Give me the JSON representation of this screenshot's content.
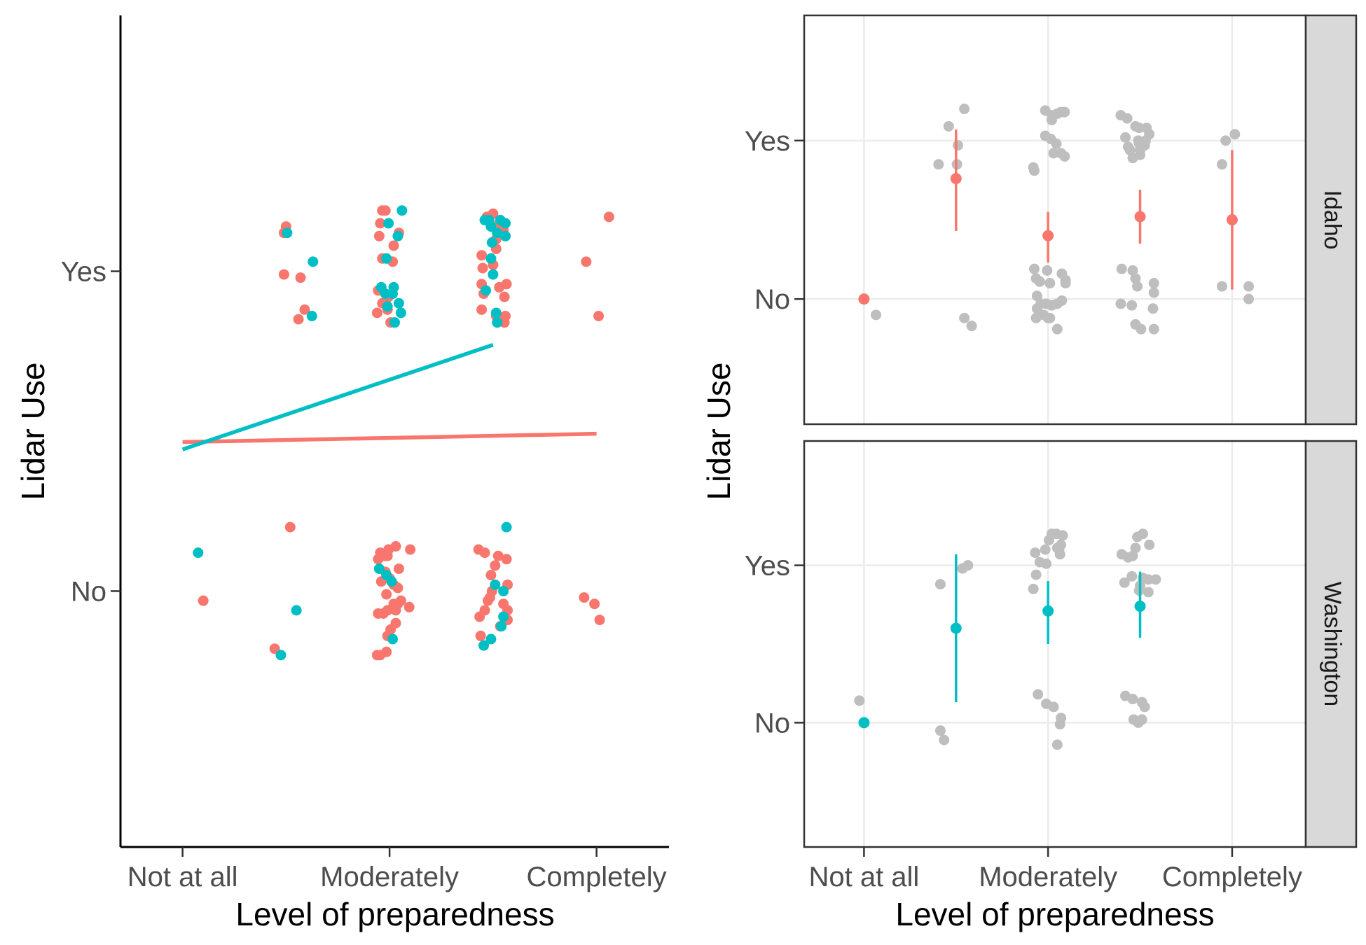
{
  "colors": {
    "idaho": "#F8766D",
    "washington": "#00BFC4",
    "raw_points": "#BEBEBE",
    "grid": "#EBEBEB",
    "strip_fill": "#D9D9D9",
    "panel_border": "#333333"
  },
  "chart_data": [
    {
      "type": "scatter",
      "panel": "left",
      "xlabel": "Level of preparedness",
      "ylabel": "Lidar Use",
      "x_ticks": [
        "Not at all",
        "Moderately",
        "Completely"
      ],
      "x_tick_values": [
        1,
        3,
        5
      ],
      "y_ticks": [
        "No",
        "Yes"
      ],
      "y_tick_values": [
        0,
        1
      ],
      "xlim": [
        0.4,
        5.7
      ],
      "ylim": [
        -0.8,
        1.8
      ],
      "grid": false,
      "series": [
        {
          "color_key": "idaho",
          "points": [
            [
              2.0,
              1.14
            ],
            [
              1.98,
              1.12
            ],
            [
              2.14,
              0.98
            ],
            [
              1.98,
              0.99
            ],
            [
              2.18,
              0.88
            ],
            [
              2.12,
              0.85
            ],
            [
              2.93,
              1.19
            ],
            [
              2.96,
              1.19
            ],
            [
              2.91,
              1.15
            ],
            [
              3.09,
              1.12
            ],
            [
              2.9,
              1.11
            ],
            [
              3.04,
              1.08
            ],
            [
              2.93,
              1.04
            ],
            [
              3.03,
              1.03
            ],
            [
              2.89,
              0.94
            ],
            [
              2.99,
              0.92
            ],
            [
              2.93,
              0.9
            ],
            [
              2.98,
              0.88
            ],
            [
              2.88,
              0.87
            ],
            [
              3.01,
              0.84
            ],
            [
              4.0,
              1.18
            ],
            [
              3.94,
              1.17
            ],
            [
              4.06,
              1.15
            ],
            [
              4.11,
              1.15
            ],
            [
              4.1,
              1.13
            ],
            [
              4.03,
              1.1
            ],
            [
              4.03,
              1.07
            ],
            [
              3.89,
              1.05
            ],
            [
              4.0,
              1.02
            ],
            [
              3.9,
              1.01
            ],
            [
              4.13,
              0.96
            ],
            [
              4.06,
              0.95
            ],
            [
              3.89,
              0.96
            ],
            [
              3.91,
              0.93
            ],
            [
              4.11,
              0.92
            ],
            [
              3.89,
              0.88
            ],
            [
              4.03,
              0.86
            ],
            [
              4.12,
              0.86
            ],
            [
              4.11,
              0.84
            ],
            [
              5.12,
              1.17
            ],
            [
              4.9,
              1.03
            ],
            [
              5.02,
              0.86
            ],
            [
              1.2,
              -0.03
            ],
            [
              2.04,
              0.2
            ],
            [
              1.89,
              -0.18
            ],
            [
              2.91,
              0.12
            ],
            [
              2.95,
              0.11
            ],
            [
              2.98,
              0.11
            ],
            [
              2.99,
              0.13
            ],
            [
              3.06,
              0.14
            ],
            [
              3.2,
              0.13
            ],
            [
              2.89,
              0.1
            ],
            [
              2.96,
              0.06
            ],
            [
              3.09,
              0.07
            ],
            [
              3.0,
              0.04
            ],
            [
              2.92,
              0.03
            ],
            [
              3.04,
              0.02
            ],
            [
              3.08,
              0.01
            ],
            [
              2.97,
              -0.01
            ],
            [
              3.11,
              -0.03
            ],
            [
              3.04,
              -0.04
            ],
            [
              3.08,
              -0.04
            ],
            [
              3.19,
              -0.05
            ],
            [
              2.98,
              -0.06
            ],
            [
              2.89,
              -0.07
            ],
            [
              2.94,
              -0.07
            ],
            [
              3.06,
              -0.06
            ],
            [
              3.06,
              -0.1
            ],
            [
              3.01,
              -0.12
            ],
            [
              2.98,
              -0.14
            ],
            [
              2.91,
              -0.2
            ],
            [
              2.88,
              -0.2
            ],
            [
              2.97,
              -0.19
            ],
            [
              3.86,
              0.13
            ],
            [
              3.92,
              0.12
            ],
            [
              4.05,
              0.11
            ],
            [
              4.13,
              0.1
            ],
            [
              4.02,
              0.08
            ],
            [
              3.98,
              0.05
            ],
            [
              4.14,
              0.02
            ],
            [
              3.99,
              0.0
            ],
            [
              3.97,
              -0.02
            ],
            [
              3.95,
              -0.03
            ],
            [
              4.1,
              -0.04
            ],
            [
              3.92,
              -0.06
            ],
            [
              3.87,
              -0.08
            ],
            [
              4.14,
              -0.06
            ],
            [
              4.14,
              -0.09
            ],
            [
              3.88,
              -0.14
            ],
            [
              4.07,
              -0.11
            ],
            [
              4.88,
              -0.02
            ],
            [
              4.98,
              -0.04
            ],
            [
              5.03,
              -0.09
            ]
          ]
        },
        {
          "color_key": "washington",
          "points": [
            [
              2.01,
              1.12
            ],
            [
              2.26,
              1.03
            ],
            [
              2.25,
              0.86
            ],
            [
              3.12,
              1.19
            ],
            [
              2.99,
              1.15
            ],
            [
              3.08,
              1.11
            ],
            [
              2.97,
              1.04
            ],
            [
              2.92,
              0.95
            ],
            [
              3.04,
              0.95
            ],
            [
              2.96,
              0.93
            ],
            [
              3.03,
              0.93
            ],
            [
              3.09,
              0.9
            ],
            [
              2.98,
              0.89
            ],
            [
              3.11,
              0.87
            ],
            [
              3.05,
              0.84
            ],
            [
              3.96,
              1.16
            ],
            [
              3.92,
              1.16
            ],
            [
              4.07,
              1.16
            ],
            [
              4.12,
              1.15
            ],
            [
              3.98,
              1.14
            ],
            [
              4.04,
              1.12
            ],
            [
              4.12,
              1.11
            ],
            [
              3.99,
              1.09
            ],
            [
              3.98,
              1.04
            ],
            [
              4.0,
              0.99
            ],
            [
              3.93,
              0.94
            ],
            [
              4.03,
              0.87
            ],
            [
              4.04,
              0.84
            ],
            [
              1.15,
              0.12
            ],
            [
              2.1,
              -0.06
            ],
            [
              1.95,
              -0.2
            ],
            [
              2.9,
              0.07
            ],
            [
              2.97,
              0.05
            ],
            [
              3.02,
              0.03
            ],
            [
              3.03,
              -0.15
            ],
            [
              4.13,
              0.2
            ],
            [
              4.02,
              0.02
            ],
            [
              4.1,
              0.0
            ],
            [
              4.1,
              -0.08
            ],
            [
              4.08,
              -0.11
            ],
            [
              3.98,
              -0.15
            ],
            [
              3.91,
              -0.17
            ]
          ]
        }
      ],
      "lines": [
        {
          "color_key": "idaho",
          "x": [
            1,
            5
          ],
          "y": [
            0.466,
            0.492
          ]
        },
        {
          "color_key": "washington",
          "x": [
            1,
            4.0
          ],
          "y": [
            0.443,
            0.77
          ]
        }
      ]
    },
    {
      "type": "scatter",
      "panel": "right-top",
      "strip_label": "Idaho",
      "xlabel": "Level of preparedness",
      "ylabel": "Lidar Use",
      "x_ticks": [
        "Not at all",
        "Moderately",
        "Completely"
      ],
      "x_tick_values": [
        1,
        3,
        5
      ],
      "y_ticks": [
        "No",
        "Yes"
      ],
      "y_tick_values": [
        0,
        1
      ],
      "xlim": [
        0.35,
        5.8
      ],
      "ylim": [
        -0.79,
        1.79
      ],
      "grid": true,
      "raw_points": [
        [
          1.13,
          -0.1
        ],
        [
          2.09,
          1.2
        ],
        [
          1.92,
          1.09
        ],
        [
          2.02,
          0.97
        ],
        [
          2.01,
          0.85
        ],
        [
          1.81,
          0.85
        ],
        [
          2.09,
          -0.12
        ],
        [
          2.17,
          -0.17
        ],
        [
          2.97,
          1.19
        ],
        [
          3.04,
          1.13
        ],
        [
          3.14,
          1.18
        ],
        [
          3.04,
          1.16
        ],
        [
          3.1,
          1.17
        ],
        [
          3.18,
          1.18
        ],
        [
          2.97,
          1.03
        ],
        [
          3.03,
          1.01
        ],
        [
          3.09,
          0.98
        ],
        [
          3.14,
          0.92
        ],
        [
          3.18,
          0.9
        ],
        [
          3.06,
          0.92
        ],
        [
          2.84,
          0.83
        ],
        [
          2.85,
          0.81
        ],
        [
          2.85,
          0.19
        ],
        [
          2.99,
          0.18
        ],
        [
          2.87,
          0.13
        ],
        [
          3.02,
          0.1
        ],
        [
          2.91,
          0.11
        ],
        [
          3.15,
          0.16
        ],
        [
          3.19,
          0.12
        ],
        [
          3.19,
          0.1
        ],
        [
          2.88,
          0.02
        ],
        [
          2.92,
          -0.03
        ],
        [
          2.98,
          -0.03
        ],
        [
          3.04,
          -0.04
        ],
        [
          3.1,
          -0.03
        ],
        [
          2.88,
          -0.06
        ],
        [
          2.95,
          -0.1
        ],
        [
          3.02,
          -0.12
        ],
        [
          3.15,
          -0.01
        ],
        [
          2.87,
          -0.12
        ],
        [
          3.0,
          -0.12
        ],
        [
          3.1,
          -0.19
        ],
        [
          3.79,
          1.16
        ],
        [
          3.86,
          1.14
        ],
        [
          3.95,
          1.09
        ],
        [
          3.99,
          1.08
        ],
        [
          4.07,
          1.08
        ],
        [
          3.84,
          1.02
        ],
        [
          3.98,
          1.0
        ],
        [
          3.99,
          0.98
        ],
        [
          4.05,
          0.97
        ],
        [
          3.87,
          0.96
        ],
        [
          3.89,
          0.94
        ],
        [
          4.0,
          0.94
        ],
        [
          3.92,
          0.89
        ],
        [
          4.1,
          1.04
        ],
        [
          4.06,
          1.0
        ],
        [
          4.0,
          0.91
        ],
        [
          3.8,
          0.19
        ],
        [
          3.92,
          0.18
        ],
        [
          3.95,
          0.13
        ],
        [
          3.97,
          0.08
        ],
        [
          4.15,
          0.1
        ],
        [
          4.15,
          0.04
        ],
        [
          3.79,
          -0.03
        ],
        [
          3.91,
          -0.04
        ],
        [
          4.14,
          -0.06
        ],
        [
          3.95,
          -0.16
        ],
        [
          4.01,
          -0.19
        ],
        [
          4.15,
          -0.19
        ],
        [
          4.93,
          1.0
        ],
        [
          5.03,
          1.04
        ],
        [
          4.89,
          0.85
        ],
        [
          4.89,
          0.08
        ],
        [
          5.18,
          0.08
        ],
        [
          5.18,
          0.0
        ]
      ],
      "summary": [
        {
          "x": 1,
          "mean": 0.0,
          "lo": 0.0,
          "hi": 0.0
        },
        {
          "x": 2,
          "mean": 0.76,
          "lo": 0.43,
          "hi": 1.07
        },
        {
          "x": 3,
          "mean": 0.4,
          "lo": 0.23,
          "hi": 0.55
        },
        {
          "x": 4,
          "mean": 0.52,
          "lo": 0.35,
          "hi": 0.69
        },
        {
          "x": 5,
          "mean": 0.5,
          "lo": 0.06,
          "hi": 0.94
        }
      ],
      "summary_color_key": "idaho"
    },
    {
      "type": "scatter",
      "panel": "right-bottom",
      "strip_label": "Washington",
      "xlabel": "Level of preparedness",
      "ylabel": "Lidar Use",
      "x_ticks": [
        "Not at all",
        "Moderately",
        "Completely"
      ],
      "x_tick_values": [
        1,
        3,
        5
      ],
      "y_ticks": [
        "No",
        "Yes"
      ],
      "y_tick_values": [
        0,
        1
      ],
      "xlim": [
        0.35,
        5.8
      ],
      "ylim": [
        -0.79,
        1.79
      ],
      "grid": true,
      "raw_points": [
        [
          0.95,
          0.14
        ],
        [
          1.83,
          -0.05
        ],
        [
          1.87,
          -0.11
        ],
        [
          1.83,
          0.88
        ],
        [
          2.13,
          1.0
        ],
        [
          2.07,
          0.98
        ],
        [
          2.86,
          1.08
        ],
        [
          2.97,
          1.1
        ],
        [
          3.09,
          1.2
        ],
        [
          3.16,
          1.19
        ],
        [
          3.01,
          1.16
        ],
        [
          3.04,
          1.2
        ],
        [
          3.14,
          1.13
        ],
        [
          3.1,
          1.11
        ],
        [
          2.98,
          1.01
        ],
        [
          2.87,
          0.94
        ],
        [
          2.84,
          0.85
        ],
        [
          3.13,
          1.07
        ],
        [
          3.12,
          1.1
        ],
        [
          2.91,
          1.02
        ],
        [
          2.89,
          0.18
        ],
        [
          2.98,
          0.12
        ],
        [
          3.06,
          0.1
        ],
        [
          3.14,
          0.03
        ],
        [
          3.13,
          -0.01
        ],
        [
          3.1,
          -0.14
        ],
        [
          3.8,
          1.07
        ],
        [
          3.87,
          1.05
        ],
        [
          3.97,
          1.18
        ],
        [
          4.03,
          1.2
        ],
        [
          3.95,
          1.11
        ],
        [
          4.1,
          1.13
        ],
        [
          3.91,
          0.93
        ],
        [
          3.99,
          0.84
        ],
        [
          4.09,
          0.83
        ],
        [
          4.0,
          0.87
        ],
        [
          4.03,
          0.92
        ],
        [
          4.09,
          0.91
        ],
        [
          4.17,
          0.91
        ],
        [
          3.83,
          0.89
        ],
        [
          3.92,
          1.06
        ],
        [
          3.84,
          0.17
        ],
        [
          3.92,
          0.15
        ],
        [
          4.02,
          0.13
        ],
        [
          4.05,
          0.1
        ],
        [
          4.02,
          0.02
        ],
        [
          3.93,
          0.02
        ],
        [
          3.98,
          0.0
        ]
      ],
      "summary": [
        {
          "x": 1,
          "mean": 0.0,
          "lo": 0.0,
          "hi": 0.0
        },
        {
          "x": 2,
          "mean": 0.6,
          "lo": 0.13,
          "hi": 1.07
        },
        {
          "x": 3,
          "mean": 0.71,
          "lo": 0.5,
          "hi": 0.9
        },
        {
          "x": 4,
          "mean": 0.74,
          "lo": 0.54,
          "hi": 0.96
        }
      ],
      "summary_color_key": "washington"
    }
  ]
}
